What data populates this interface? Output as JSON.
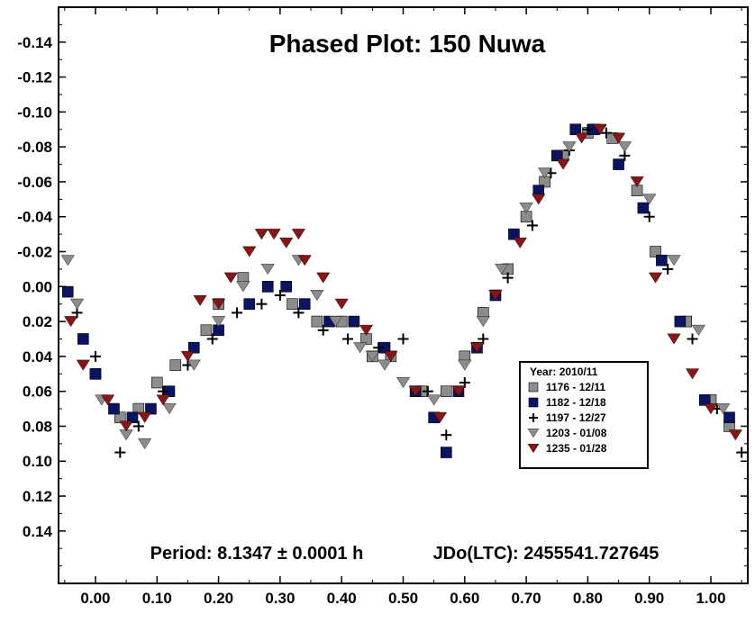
{
  "chart_data": {
    "type": "scatter",
    "title": "Phased Plot: 150 Nuwa",
    "annotation_period": "Period: 8.1347 ± 0.0001 h",
    "annotation_epoch": "JDo(LTC): 2455541.727645",
    "xlim": [
      -0.06,
      1.06
    ],
    "ylim": [
      -0.16,
      0.17
    ],
    "y_inverted": true,
    "x_ticks": [
      0.0,
      0.1,
      0.2,
      0.3,
      0.4,
      0.5,
      0.6,
      0.7,
      0.8,
      0.9,
      1.0
    ],
    "x_tick_labels": [
      "0.00",
      "0.10",
      "0.20",
      "0.30",
      "0.40",
      "0.50",
      "0.60",
      "0.70",
      "0.80",
      "0.90",
      "1.00"
    ],
    "y_ticks": [
      -0.14,
      -0.12,
      -0.1,
      -0.08,
      -0.06,
      -0.04,
      -0.02,
      0.0,
      0.02,
      0.04,
      0.06,
      0.08,
      0.1,
      0.12,
      0.14
    ],
    "y_tick_labels": [
      "-0.14",
      "-0.12",
      "-0.10",
      "-0.08",
      "-0.06",
      "-0.04",
      "-0.02",
      "0.00",
      "0.02",
      "0.04",
      "0.06",
      "0.08",
      "0.10",
      "0.12",
      "0.14"
    ],
    "grid": false,
    "legend": {
      "title": "Year: 2010/11",
      "placement": "lower-right"
    },
    "series": [
      {
        "name": "1176 - 12/11",
        "marker": "square",
        "color": "#8c8c8c",
        "x": [
          0.0,
          0.04,
          0.07,
          0.1,
          0.13,
          0.18,
          0.2,
          0.24,
          0.28,
          0.32,
          0.36,
          0.4,
          0.44,
          0.45,
          0.48,
          0.53,
          0.57,
          0.6,
          0.63,
          0.67,
          0.7,
          0.73,
          0.76,
          0.8,
          0.84,
          0.88,
          0.91,
          0.96,
          1.0,
          1.03
        ],
        "y": [
          0.05,
          0.075,
          0.07,
          0.055,
          0.045,
          0.025,
          0.01,
          -0.005,
          0.0,
          0.01,
          0.02,
          0.02,
          0.03,
          0.04,
          0.04,
          0.06,
          0.06,
          0.04,
          0.015,
          -0.01,
          -0.04,
          -0.06,
          -0.075,
          -0.088,
          -0.085,
          -0.055,
          -0.02,
          0.02,
          0.065,
          0.08
        ]
      },
      {
        "name": "1182 - 12/18",
        "marker": "square",
        "color": "#0a1464",
        "x": [
          -0.045,
          -0.02,
          0.0,
          0.03,
          0.06,
          0.09,
          0.12,
          0.16,
          0.2,
          0.25,
          0.28,
          0.31,
          0.34,
          0.38,
          0.42,
          0.47,
          0.52,
          0.55,
          0.57,
          0.59,
          0.62,
          0.65,
          0.68,
          0.72,
          0.75,
          0.78,
          0.81,
          0.85,
          0.89,
          0.92,
          0.95,
          0.99,
          1.03
        ],
        "y": [
          0.003,
          0.03,
          0.05,
          0.07,
          0.075,
          0.07,
          0.06,
          0.035,
          0.025,
          0.01,
          0.0,
          0.0,
          0.01,
          0.02,
          0.02,
          0.035,
          0.06,
          0.075,
          0.095,
          0.06,
          0.035,
          0.005,
          -0.03,
          -0.055,
          -0.075,
          -0.09,
          -0.09,
          -0.07,
          -0.045,
          -0.015,
          0.02,
          0.065,
          0.075
        ]
      },
      {
        "name": "1197 - 12/27",
        "marker": "plus",
        "color": "#000000",
        "x": [
          -0.03,
          0.0,
          0.04,
          0.07,
          0.11,
          0.15,
          0.19,
          0.23,
          0.27,
          0.3,
          0.33,
          0.37,
          0.41,
          0.46,
          0.5,
          0.54,
          0.57,
          0.6,
          0.63,
          0.67,
          0.71,
          0.74,
          0.77,
          0.8,
          0.83,
          0.86,
          0.9,
          0.93,
          0.97,
          1.01,
          1.05
        ],
        "y": [
          0.015,
          0.04,
          0.095,
          0.08,
          0.06,
          0.045,
          0.03,
          0.015,
          0.01,
          0.005,
          0.015,
          0.025,
          0.03,
          0.035,
          0.03,
          0.06,
          0.085,
          0.055,
          0.03,
          -0.005,
          -0.035,
          -0.065,
          -0.078,
          -0.09,
          -0.088,
          -0.075,
          -0.04,
          -0.01,
          0.03,
          0.07,
          0.095
        ]
      },
      {
        "name": "1203 - 01/08",
        "marker": "triangle-down",
        "color": "#8c8c8c",
        "x": [
          -0.045,
          -0.03,
          0.01,
          0.05,
          0.08,
          0.12,
          0.16,
          0.2,
          0.24,
          0.28,
          0.33,
          0.36,
          0.39,
          0.43,
          0.45,
          0.47,
          0.5,
          0.55,
          0.6,
          0.63,
          0.66,
          0.7,
          0.73,
          0.77,
          0.82,
          0.86,
          0.9,
          0.94,
          0.98,
          1.02
        ],
        "y": [
          -0.015,
          0.01,
          0.065,
          0.085,
          0.09,
          0.07,
          0.045,
          0.02,
          0.0,
          -0.01,
          -0.015,
          0.005,
          0.02,
          0.035,
          0.04,
          0.045,
          0.055,
          0.065,
          0.045,
          0.02,
          -0.01,
          -0.045,
          -0.065,
          -0.08,
          -0.09,
          -0.08,
          -0.05,
          -0.015,
          0.025,
          0.07
        ]
      },
      {
        "name": "1235 - 01/28",
        "marker": "triangle-down",
        "color": "#8b1414",
        "x": [
          -0.04,
          -0.02,
          0.02,
          0.05,
          0.08,
          0.11,
          0.15,
          0.17,
          0.2,
          0.22,
          0.25,
          0.27,
          0.29,
          0.31,
          0.33,
          0.34,
          0.37,
          0.4,
          0.44,
          0.48,
          0.52,
          0.56,
          0.59,
          0.62,
          0.65,
          0.69,
          0.72,
          0.76,
          0.79,
          0.82,
          0.85,
          0.88,
          0.91,
          0.94,
          0.97,
          1.0,
          1.04
        ],
        "y": [
          0.02,
          0.045,
          0.065,
          0.08,
          0.075,
          0.065,
          0.04,
          0.008,
          0.01,
          -0.005,
          -0.02,
          -0.03,
          -0.03,
          -0.025,
          -0.03,
          -0.015,
          -0.005,
          0.01,
          0.025,
          0.04,
          0.06,
          0.075,
          0.06,
          0.035,
          0.005,
          -0.025,
          -0.05,
          -0.07,
          -0.085,
          -0.09,
          -0.085,
          -0.06,
          -0.005,
          0.03,
          0.05,
          0.07,
          0.085
        ]
      }
    ]
  }
}
